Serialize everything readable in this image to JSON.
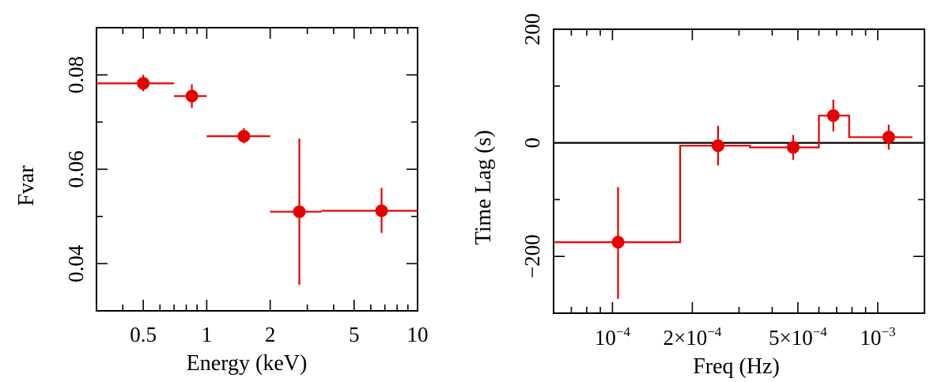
{
  "chart_data": [
    {
      "type": "scatter",
      "title": "",
      "xlabel": "Energy (keV)",
      "ylabel": "Fvar",
      "xscale": "log",
      "xlim": [
        0.3,
        10
      ],
      "ylim": [
        0.03,
        0.09
      ],
      "x_ticks": [
        0.5,
        1,
        2,
        5,
        10
      ],
      "x_tick_labels": [
        "0.5",
        "1",
        "2",
        "5",
        "10"
      ],
      "y_ticks": [
        0.04,
        0.06,
        0.08
      ],
      "y_tick_labels": [
        "0.04",
        "0.06",
        "0.08"
      ],
      "color": "#e60000",
      "points": [
        {
          "x": 0.5,
          "xlo": 0.3,
          "xhi": 0.7,
          "y": 0.0782,
          "ylo": 0.0765,
          "yhi": 0.08
        },
        {
          "x": 0.85,
          "xlo": 0.7,
          "xhi": 1.0,
          "y": 0.0755,
          "ylo": 0.073,
          "yhi": 0.078
        },
        {
          "x": 1.5,
          "xlo": 1.0,
          "xhi": 2.0,
          "y": 0.067,
          "ylo": 0.0655,
          "yhi": 0.0687
        },
        {
          "x": 2.75,
          "xlo": 2.0,
          "xhi": 3.5,
          "y": 0.051,
          "ylo": 0.0355,
          "yhi": 0.0665
        },
        {
          "x": 6.75,
          "xlo": 3.5,
          "xhi": 10.0,
          "y": 0.0512,
          "ylo": 0.0465,
          "yhi": 0.056
        }
      ]
    },
    {
      "type": "line",
      "title": "",
      "xlabel": "Freq (Hz)",
      "ylabel": "Time Lag (s)",
      "xscale": "log",
      "xlim": [
        6e-05,
        0.0015
      ],
      "ylim": [
        -300,
        200
      ],
      "x_ticks": [
        0.0001,
        0.0002,
        0.0005,
        0.001
      ],
      "x_tick_labels": [
        {
          "base": "10",
          "exp": "−4"
        },
        {
          "base": "2×10",
          "exp": "−4"
        },
        {
          "base": "5×10",
          "exp": "−4"
        },
        {
          "base": "10",
          "exp": "−3"
        }
      ],
      "y_ticks": [
        -200,
        0,
        200
      ],
      "y_tick_labels": [
        "−200",
        "0",
        "200"
      ],
      "zero_line": true,
      "color": "#e60000",
      "points": [
        {
          "x": 0.000105,
          "xlo": 6e-05,
          "xhi": 0.00018,
          "y": -175,
          "ylo": -275,
          "yhi": -78
        },
        {
          "x": 0.00025,
          "xlo": 0.00018,
          "xhi": 0.00033,
          "y": -5,
          "ylo": -40,
          "yhi": 30
        },
        {
          "x": 0.00048,
          "xlo": 0.00033,
          "xhi": 0.0006,
          "y": -8,
          "ylo": -30,
          "yhi": 14
        },
        {
          "x": 0.00068,
          "xlo": 0.0006,
          "xhi": 0.00078,
          "y": 48,
          "ylo": 20,
          "yhi": 76
        },
        {
          "x": 0.0011,
          "xlo": 0.00078,
          "xhi": 0.00135,
          "y": 10,
          "ylo": -12,
          "yhi": 32
        }
      ]
    }
  ]
}
